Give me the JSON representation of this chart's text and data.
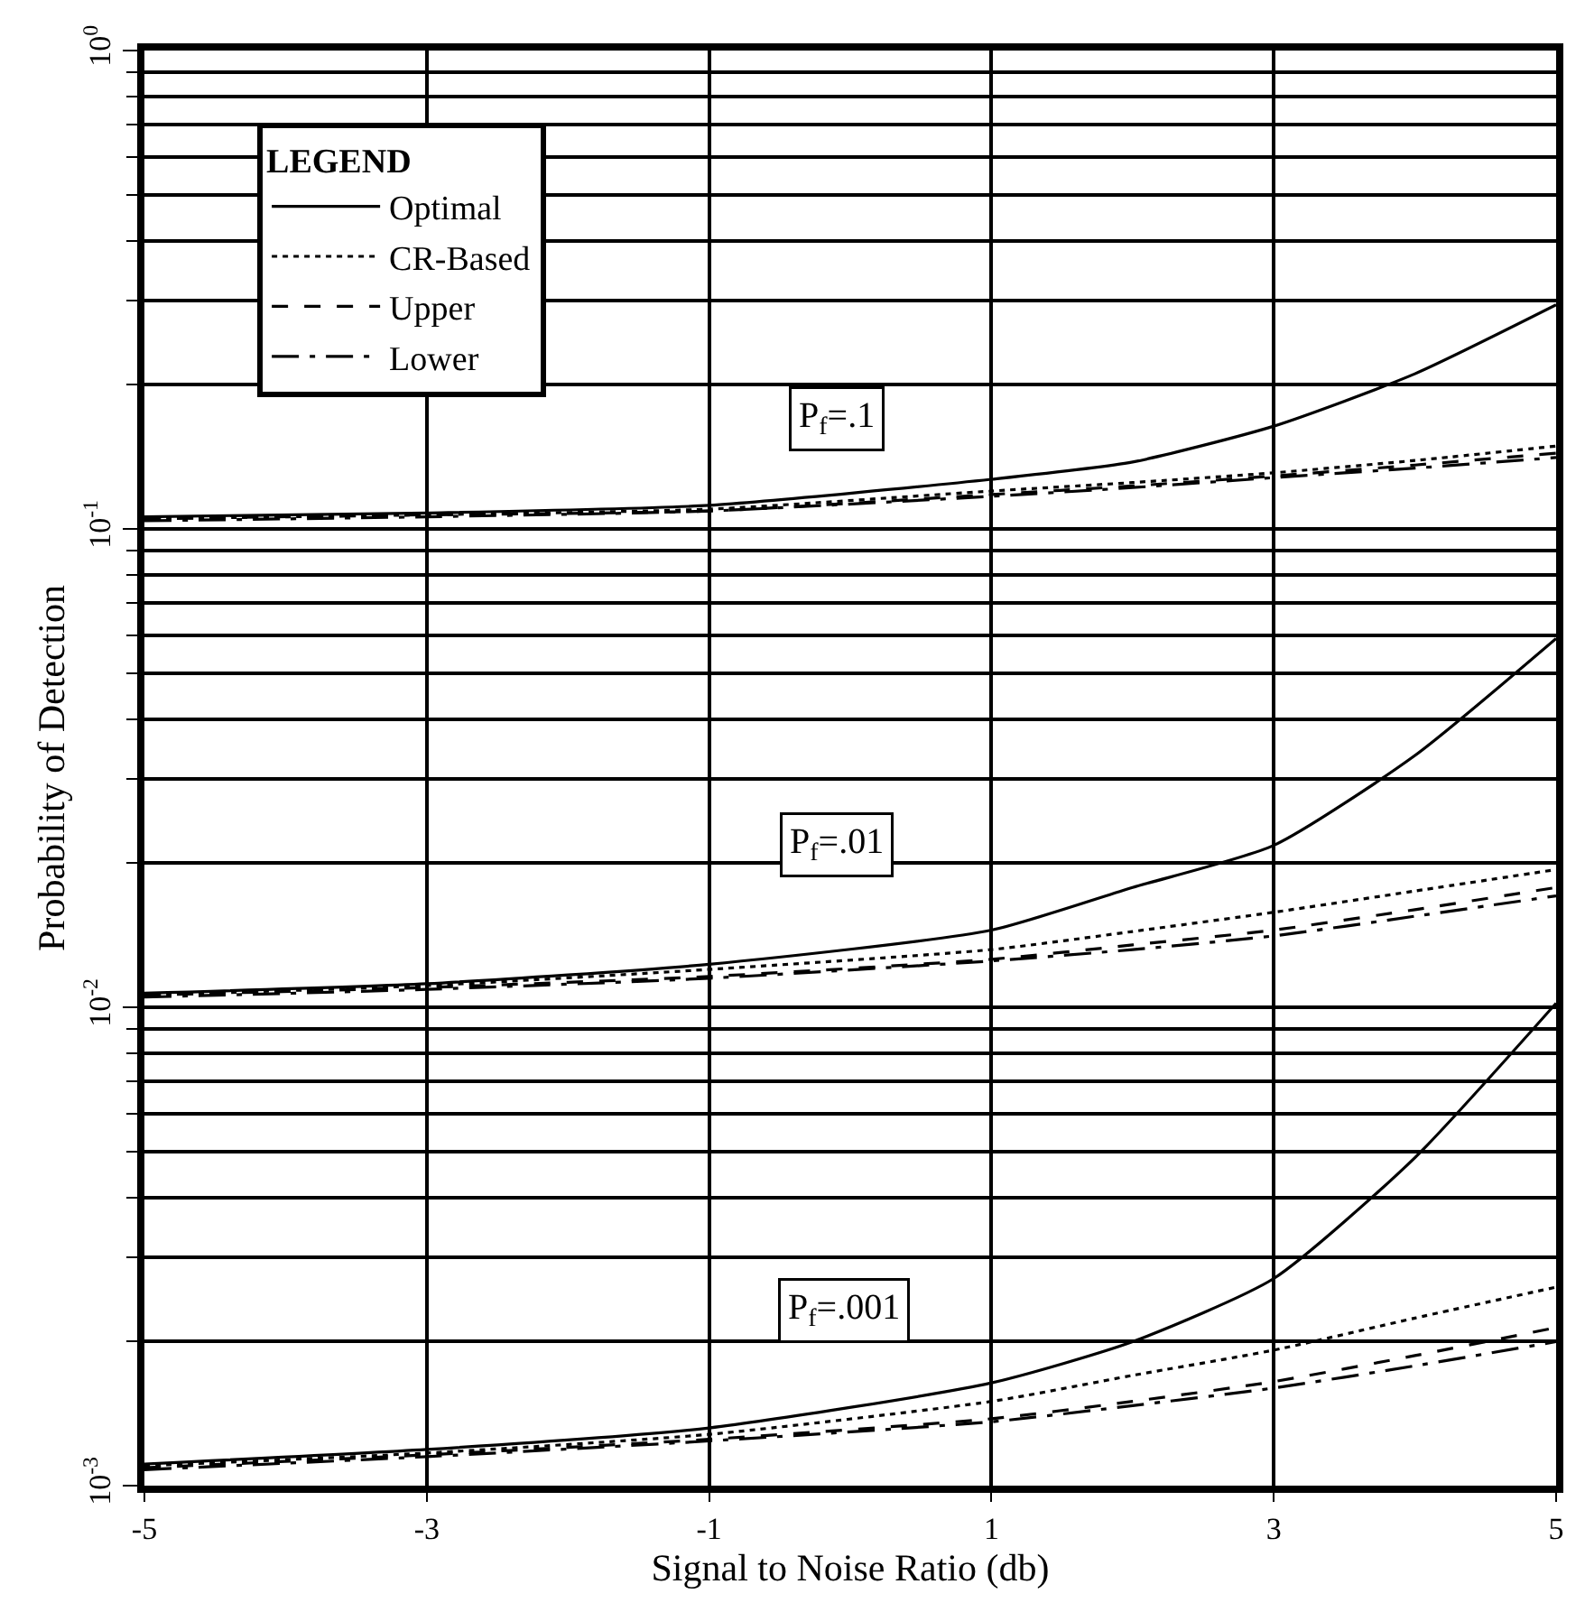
{
  "chart_data": {
    "type": "line",
    "xlabel": "Signal to Noise Ratio (db)",
    "ylabel": "Probability of Detection",
    "legend_title": "LEGEND",
    "legend": "top left",
    "grid": true,
    "log": "y",
    "marker": "none",
    "x": [
      -5,
      -3,
      -1,
      1,
      2,
      3,
      4,
      5
    ],
    "xlim": [
      -5,
      5
    ],
    "xticks": [
      -5,
      -3,
      -1,
      1,
      3,
      5
    ],
    "ylim": [
      0.001,
      1
    ],
    "yticks": [
      {
        "value": 1,
        "label": "10$^{0}$"
      },
      {
        "value": 0.1,
        "label": "10$^{-1}$"
      },
      {
        "value": 0.01,
        "label": "10$^{-2}$"
      },
      {
        "value": 0.001,
        "label": "10$^{-3}$"
      }
    ],
    "series": [
      {
        "name": "Optimal",
        "color": "#000000",
        "line_style": "solid",
        "values": [
          0.106,
          0.108,
          0.112,
          0.127,
          0.138,
          0.164,
          0.211,
          0.294
        ]
      },
      {
        "name": "CR-Based",
        "color": "#000000",
        "line_style": "dotted",
        "values": [
          0.105,
          0.107,
          0.11,
          0.12,
          0.125,
          0.131,
          0.139,
          0.149
        ]
      },
      {
        "name": "Upper",
        "color": "#000000",
        "line_style": "dashed",
        "values": [
          0.105,
          0.107,
          0.109,
          0.118,
          0.123,
          0.129,
          0.136,
          0.144
        ]
      },
      {
        "name": "Lower",
        "color": "#000000",
        "line_style": "dashdot",
        "values": [
          0.104,
          0.106,
          0.109,
          0.117,
          0.122,
          0.128,
          0.134,
          0.141
        ]
      },
      {
        "color": "#000000",
        "line_style": "solid",
        "values": [
          0.0107,
          0.0112,
          0.0123,
          0.0145,
          0.0178,
          0.0218,
          0.0336,
          0.059
        ]
      },
      {
        "color": "#000000",
        "line_style": "dotted",
        "values": [
          0.0106,
          0.0111,
          0.012,
          0.0132,
          0.0144,
          0.0158,
          0.0175,
          0.0194
        ]
      },
      {
        "color": "#000000",
        "line_style": "dashed",
        "values": [
          0.0106,
          0.011,
          0.0116,
          0.0126,
          0.0135,
          0.0145,
          0.016,
          0.0178
        ]
      },
      {
        "color": "#000000",
        "line_style": "dashdot",
        "values": [
          0.0105,
          0.0109,
          0.0115,
          0.0125,
          0.0132,
          0.0141,
          0.0155,
          0.0171
        ]
      },
      {
        "color": "#000000",
        "line_style": "solid",
        "values": [
          0.00111,
          0.00119,
          0.00132,
          0.00164,
          0.002,
          0.00271,
          0.00485,
          0.0102
        ]
      },
      {
        "color": "#000000",
        "line_style": "dotted",
        "values": [
          0.0011,
          0.00117,
          0.00128,
          0.0015,
          0.0017,
          0.00192,
          0.00224,
          0.0026
        ]
      },
      {
        "color": "#000000",
        "line_style": "dashed",
        "values": [
          0.00109,
          0.00116,
          0.00125,
          0.00138,
          0.0015,
          0.00165,
          0.00187,
          0.00214
        ]
      },
      {
        "color": "#000000",
        "line_style": "dashdot",
        "values": [
          0.00108,
          0.00115,
          0.00124,
          0.00136,
          0.00147,
          0.0016,
          0.00178,
          0.002
        ]
      }
    ],
    "annotations": [
      "P$_{f}$=.1",
      "P$_{f}$=.01",
      "P$_{f}$=.001"
    ]
  }
}
